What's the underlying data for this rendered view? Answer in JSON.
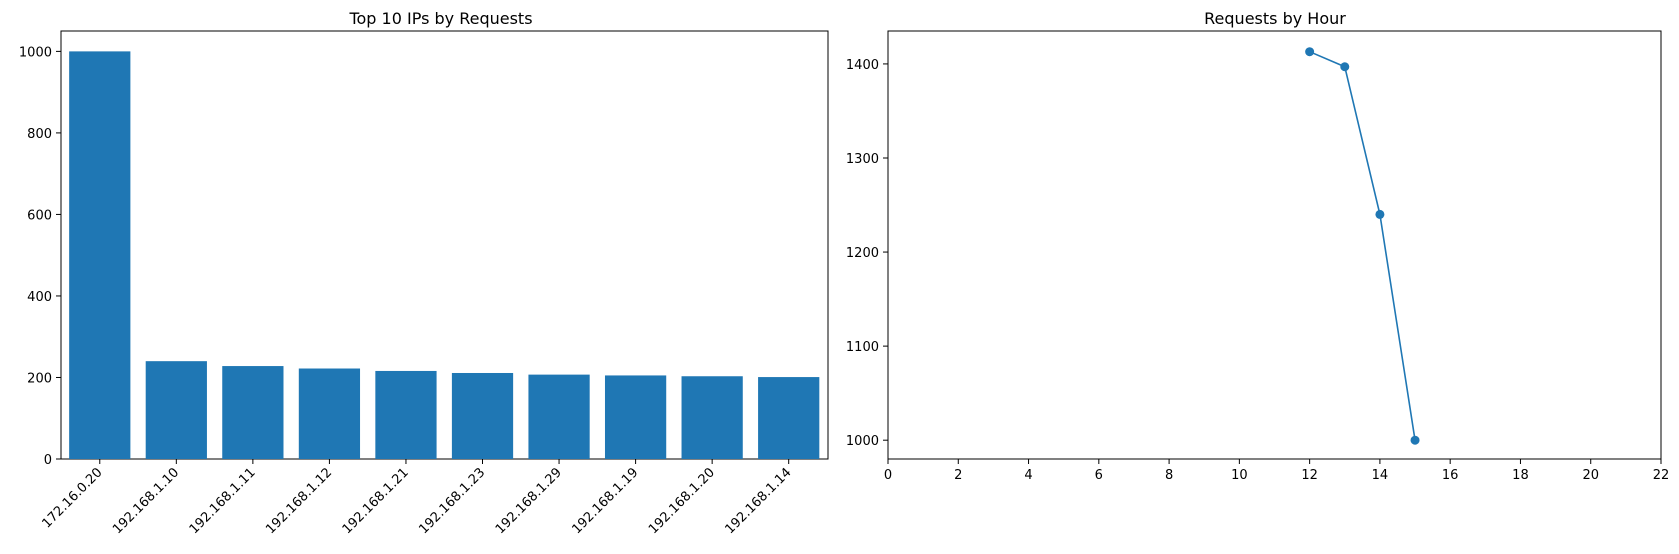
{
  "chart_data": [
    {
      "type": "bar",
      "title": "Top 10 IPs by Requests",
      "xlabel": "",
      "ylabel": "",
      "categories": [
        "172.16.0.20",
        "192.168.1.10",
        "192.168.1.11",
        "192.168.1.12",
        "192.168.1.21",
        "192.168.1.23",
        "192.168.1.29",
        "192.168.1.19",
        "192.168.1.20",
        "192.168.1.14"
      ],
      "values": [
        1000,
        240,
        228,
        222,
        216,
        211,
        207,
        205,
        203,
        201
      ],
      "ylim": [
        0,
        1050
      ],
      "yticks": [
        0,
        200,
        400,
        600,
        800,
        1000
      ],
      "grid": false,
      "color": "#1f77b4"
    },
    {
      "type": "line",
      "title": "Requests by Hour",
      "xlabel": "",
      "ylabel": "",
      "x": [
        12,
        13,
        14,
        15
      ],
      "y": [
        1413,
        1397,
        1240,
        1000
      ],
      "xlim": [
        0,
        22
      ],
      "ylim": [
        980,
        1435
      ],
      "xticks": [
        0,
        2,
        4,
        6,
        8,
        10,
        12,
        14,
        16,
        18,
        20,
        22
      ],
      "yticks": [
        1000,
        1100,
        1200,
        1300,
        1400
      ],
      "markers": true,
      "grid": false,
      "color": "#1f77b4"
    }
  ]
}
